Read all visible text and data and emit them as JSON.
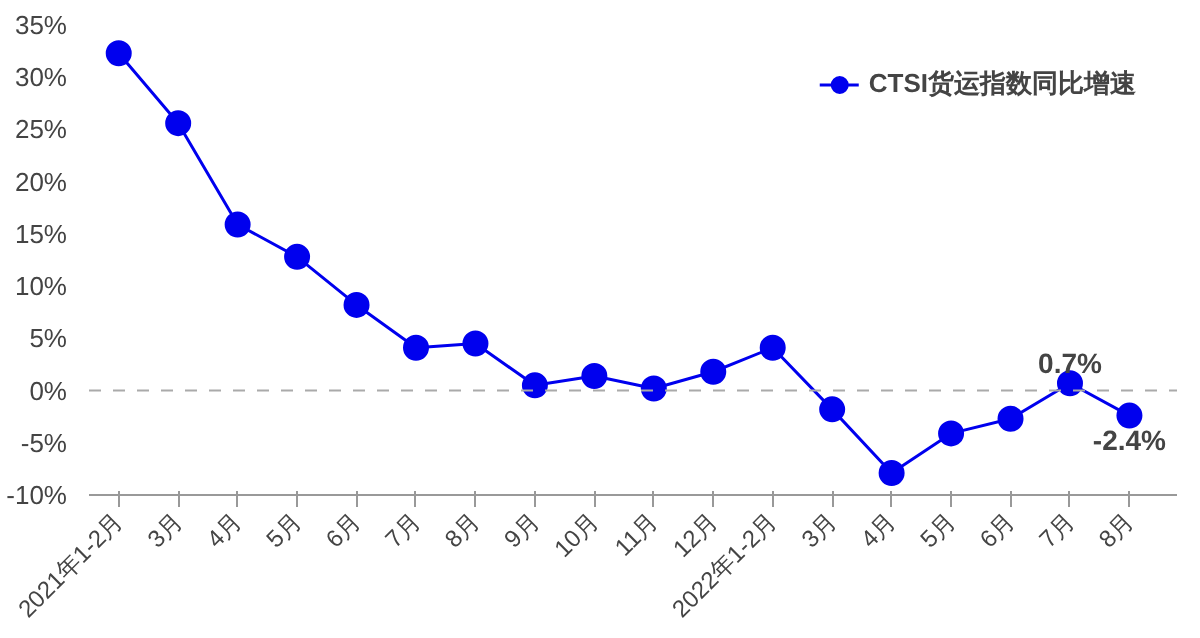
{
  "chart_data": {
    "type": "line",
    "categories": [
      "2021年1-2月",
      "3月",
      "4月",
      "5月",
      "6月",
      "7月",
      "8月",
      "9月",
      "10月",
      "11月",
      "12月",
      "2022年1-2月",
      "3月",
      "4月",
      "5月",
      "6月",
      "7月",
      "8月"
    ],
    "series": [
      {
        "name": "CTSI货运指数同比增速",
        "color": "#0000ee",
        "values": [
          32.3,
          25.6,
          15.9,
          12.8,
          8.2,
          4.1,
          4.5,
          0.5,
          1.4,
          0.2,
          1.8,
          4.1,
          -1.8,
          -7.9,
          -4.1,
          -2.7,
          0.7,
          -2.4
        ],
        "value_labels": [
          null,
          null,
          null,
          null,
          null,
          null,
          null,
          null,
          null,
          null,
          null,
          null,
          null,
          null,
          null,
          null,
          "0.7%",
          "-2.4%"
        ]
      }
    ],
    "ylim": [
      -10,
      35
    ],
    "yticks": [
      {
        "value": -10,
        "label": "-10%"
      },
      {
        "value": -5,
        "label": "-5%"
      },
      {
        "value": 0,
        "label": "0%"
      },
      {
        "value": 5,
        "label": "5%"
      },
      {
        "value": 10,
        "label": "10%"
      },
      {
        "value": 15,
        "label": "15%"
      },
      {
        "value": 20,
        "label": "20%"
      },
      {
        "value": 25,
        "label": "25%"
      },
      {
        "value": 30,
        "label": "30%"
      },
      {
        "value": 35,
        "label": "35%"
      }
    ],
    "ref_lines": [
      {
        "axis": "y",
        "value": 0,
        "label": null,
        "color": "#aaaaaa",
        "line_style": "dashed"
      }
    ],
    "legend": "top right",
    "grid": false,
    "marker": "circle",
    "line_style": "solid"
  }
}
